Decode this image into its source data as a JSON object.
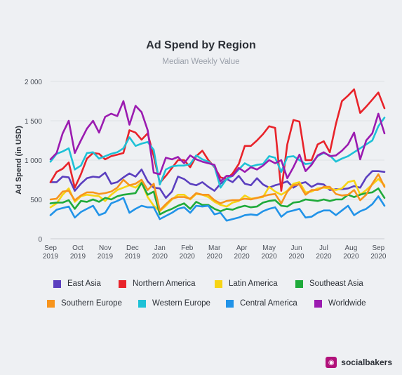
{
  "chart_data": {
    "type": "line",
    "title": "Ad Spend by Region",
    "subtitle": "Median Weekly Value",
    "ylabel": "Ad Spend (in USD)",
    "xlabel": "",
    "ylim": [
      0,
      2000
    ],
    "yticks": [
      0,
      500,
      1000,
      1500,
      2000
    ],
    "ytick_labels": [
      "0",
      "500",
      "1 000",
      "1 500",
      "2 000"
    ],
    "x_ticks": [
      {
        "week": 0,
        "line1": "Sep",
        "line2": "2019"
      },
      {
        "week": 4.5,
        "line1": "Oct",
        "line2": "2019"
      },
      {
        "week": 9,
        "line1": "Nov",
        "line2": "2019"
      },
      {
        "week": 13.5,
        "line1": "Dec",
        "line2": "2019"
      },
      {
        "week": 18,
        "line1": "Jan",
        "line2": "2020"
      },
      {
        "week": 22.5,
        "line1": "Feb",
        "line2": "2020"
      },
      {
        "week": 27,
        "line1": "Mar",
        "line2": "2020"
      },
      {
        "week": 31.5,
        "line1": "Apr",
        "line2": "2020"
      },
      {
        "week": 36,
        "line1": "May",
        "line2": "2020"
      },
      {
        "week": 40.5,
        "line1": "Jun",
        "line2": "2020"
      },
      {
        "week": 45,
        "line1": "Jul",
        "line2": "2020"
      },
      {
        "week": 49.5,
        "line1": "Aug",
        "line2": "2020"
      },
      {
        "week": 54,
        "line1": "Sep",
        "line2": "2020"
      }
    ],
    "grid": true,
    "legend_position": "bottom",
    "series": [
      {
        "name": "East Asia",
        "color": "#5b3fbf",
        "values": [
          720,
          720,
          790,
          780,
          610,
          700,
          770,
          790,
          780,
          840,
          700,
          720,
          780,
          830,
          790,
          880,
          730,
          650,
          640,
          520,
          600,
          790,
          760,
          700,
          680,
          720,
          660,
          610,
          700,
          760,
          720,
          800,
          700,
          680,
          770,
          690,
          650,
          680,
          700,
          730,
          650,
          700,
          720,
          660,
          700,
          690,
          620,
          630,
          630,
          640,
          670,
          650,
          780,
          860,
          860,
          850
        ]
      },
      {
        "name": "Northern America",
        "color": "#e8232a",
        "values": [
          720,
          850,
          890,
          970,
          650,
          820,
          1020,
          1090,
          1080,
          1010,
          1050,
          1070,
          1090,
          1380,
          1350,
          1260,
          1340,
          1050,
          710,
          800,
          900,
          1000,
          1000,
          910,
          1050,
          1120,
          1000,
          910,
          780,
          760,
          830,
          950,
          1180,
          1180,
          1250,
          1330,
          1430,
          1410,
          610,
          1200,
          1510,
          1490,
          1000,
          1000,
          1200,
          1240,
          1100,
          1460,
          1750,
          1820,
          1900,
          1600,
          1680,
          1770,
          1860,
          1660
        ]
      },
      {
        "name": "Latin America",
        "color": "#f7d414",
        "values": [
          400,
          450,
          560,
          640,
          470,
          540,
          560,
          550,
          540,
          480,
          560,
          620,
          650,
          680,
          650,
          720,
          530,
          420,
          350,
          420,
          500,
          560,
          560,
          500,
          570,
          560,
          530,
          470,
          430,
          410,
          460,
          480,
          550,
          510,
          520,
          530,
          660,
          600,
          560,
          610,
          700,
          720,
          590,
          600,
          640,
          650,
          640,
          620,
          640,
          720,
          740,
          560,
          620,
          690,
          760,
          680
        ]
      },
      {
        "name": "Southeast Asia",
        "color": "#1faa3a",
        "values": [
          450,
          460,
          460,
          490,
          380,
          480,
          470,
          500,
          470,
          520,
          500,
          540,
          560,
          570,
          580,
          710,
          560,
          600,
          310,
          350,
          380,
          420,
          450,
          380,
          470,
          430,
          430,
          380,
          350,
          380,
          370,
          400,
          420,
          400,
          410,
          460,
          480,
          490,
          420,
          410,
          460,
          470,
          500,
          490,
          480,
          500,
          480,
          500,
          500,
          560,
          530,
          560,
          580,
          590,
          640,
          520
        ]
      },
      {
        "name": "Southern Europe",
        "color": "#f7941d",
        "values": [
          500,
          510,
          600,
          610,
          490,
          550,
          590,
          590,
          570,
          580,
          600,
          650,
          750,
          680,
          700,
          750,
          620,
          700,
          360,
          440,
          510,
          530,
          530,
          510,
          580,
          560,
          560,
          490,
          450,
          480,
          490,
          490,
          510,
          500,
          520,
          540,
          560,
          570,
          450,
          600,
          680,
          690,
          560,
          620,
          620,
          660,
          660,
          570,
          550,
          560,
          620,
          490,
          560,
          700,
          820,
          660
        ]
      },
      {
        "name": "Western Europe",
        "color": "#1ec1d6",
        "values": [
          980,
          1080,
          1110,
          1150,
          880,
          930,
          1090,
          1100,
          1020,
          1050,
          1080,
          1100,
          1150,
          1290,
          1180,
          1210,
          1230,
          1130,
          690,
          880,
          920,
          930,
          930,
          950,
          1060,
          1010,
          980,
          920,
          650,
          760,
          800,
          880,
          960,
          920,
          940,
          950,
          1050,
          1030,
          850,
          1040,
          1050,
          1000,
          950,
          960,
          1050,
          1090,
          1060,
          980,
          1020,
          1050,
          1100,
          1150,
          1200,
          1250,
          1430,
          1540
        ]
      },
      {
        "name": "Central America",
        "color": "#2193e8",
        "values": [
          300,
          370,
          390,
          410,
          270,
          340,
          380,
          420,
          300,
          330,
          450,
          480,
          520,
          330,
          380,
          420,
          400,
          400,
          250,
          290,
          330,
          380,
          400,
          330,
          420,
          410,
          420,
          310,
          330,
          230,
          250,
          270,
          300,
          310,
          300,
          350,
          380,
          400,
          280,
          340,
          360,
          380,
          270,
          280,
          330,
          360,
          360,
          300,
          360,
          420,
          300,
          350,
          380,
          440,
          540,
          420
        ]
      },
      {
        "name": "Worldwide",
        "color": "#9b1bb0",
        "values": [
          1010,
          1090,
          1340,
          1500,
          1090,
          1250,
          1400,
          1500,
          1350,
          1550,
          1590,
          1560,
          1750,
          1450,
          1690,
          1610,
          1380,
          840,
          820,
          1030,
          1010,
          1040,
          960,
          1060,
          1010,
          980,
          960,
          940,
          730,
          800,
          800,
          900,
          850,
          910,
          880,
          930,
          1000,
          960,
          1000,
          770,
          910,
          1070,
          860,
          940,
          1060,
          1100,
          1050,
          1060,
          1120,
          1200,
          1350,
          1010,
          1250,
          1340,
          1590,
          1340
        ]
      }
    ]
  },
  "legend": {
    "items": [
      {
        "label": "East Asia",
        "color": "#5b3fbf"
      },
      {
        "label": "Northern America",
        "color": "#e8232a"
      },
      {
        "label": "Latin America",
        "color": "#f7d414"
      },
      {
        "label": "Southeast Asia",
        "color": "#1faa3a"
      },
      {
        "label": "Southern Europe",
        "color": "#f7941d"
      },
      {
        "label": "Western Europe",
        "color": "#1ec1d6"
      },
      {
        "label": "Central America",
        "color": "#2193e8"
      },
      {
        "label": "Worldwide",
        "color": "#9b1bb0"
      }
    ]
  },
  "brand": {
    "name": "socialbakers",
    "icon": "socialbakers-chef-hat-icon",
    "color": "#b1117a"
  }
}
